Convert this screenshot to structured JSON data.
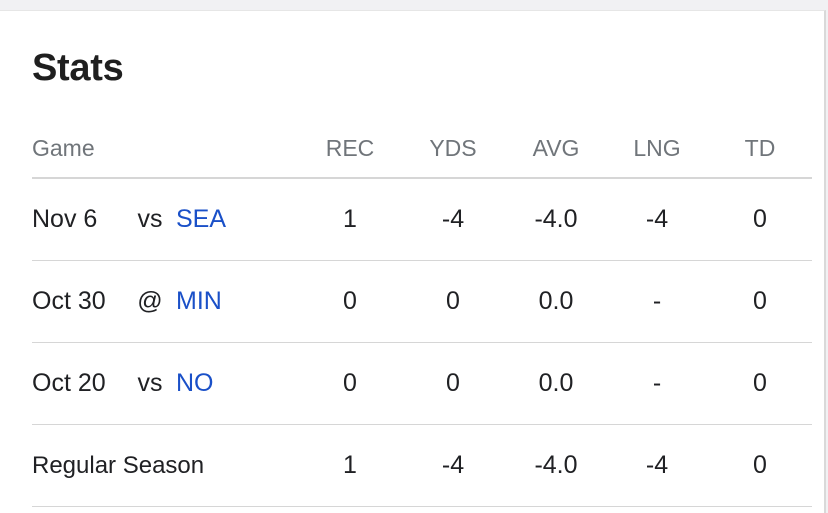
{
  "title": "Stats",
  "columns": {
    "game": "Game",
    "rec": "REC",
    "yds": "YDS",
    "avg": "AVG",
    "lng": "LNG",
    "td": "TD"
  },
  "games": [
    {
      "date": "Nov 6",
      "homeaway": "vs",
      "opponent": "SEA",
      "rec": "1",
      "yds": "-4",
      "avg": "-4.0",
      "lng": "-4",
      "td": "0"
    },
    {
      "date": "Oct 30",
      "homeaway": "@",
      "opponent": "MIN",
      "rec": "0",
      "yds": "0",
      "avg": "0.0",
      "lng": "-",
      "td": "0"
    },
    {
      "date": "Oct 20",
      "homeaway": "vs",
      "opponent": "NO",
      "rec": "0",
      "yds": "0",
      "avg": "0.0",
      "lng": "-",
      "td": "0"
    }
  ],
  "season": {
    "label": "Regular Season",
    "rec": "1",
    "yds": "-4",
    "avg": "-4.0",
    "lng": "-4",
    "td": "0"
  },
  "colors": {
    "link": "#1a50c8",
    "header_text": "#70757a",
    "divider": "#d6d6d6"
  }
}
